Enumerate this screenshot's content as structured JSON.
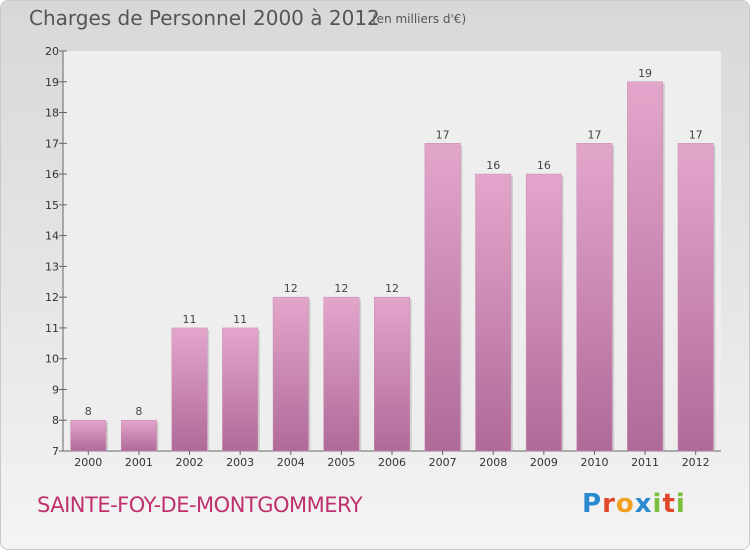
{
  "header": {
    "title": "Charges de Personnel 2000 à 2012",
    "subtitle": "(en milliers d'€)"
  },
  "footer": {
    "commune": "SAINTE-FOY-DE-MONTGOMMERY",
    "logo": [
      "P",
      "r",
      "o",
      "x",
      "i",
      "t",
      "i"
    ]
  },
  "colors": {
    "bar_top": "#e3a6cb",
    "bar_bottom": "#b06a98",
    "commune_text": "#c0306e",
    "logo": [
      "#2a8ad0",
      "#e0472a",
      "#f0a020",
      "#2a8ad0",
      "#7bbf3a",
      "#e0472a",
      "#7bbf3a"
    ]
  },
  "chart_data": {
    "type": "bar",
    "title": "Charges de Personnel 2000 à 2012",
    "subtitle": "(en milliers d'€)",
    "categories": [
      "2000",
      "2001",
      "2002",
      "2003",
      "2004",
      "2005",
      "2006",
      "2007",
      "2008",
      "2009",
      "2010",
      "2011",
      "2012"
    ],
    "values": [
      8,
      8,
      11,
      11,
      12,
      12,
      12,
      17,
      16,
      16,
      17,
      19,
      17
    ],
    "ylim": [
      7,
      20
    ],
    "yticks": [
      7,
      8,
      9,
      10,
      11,
      12,
      13,
      14,
      15,
      16,
      17,
      18,
      19,
      20
    ],
    "grid": false,
    "data_labels": true
  }
}
